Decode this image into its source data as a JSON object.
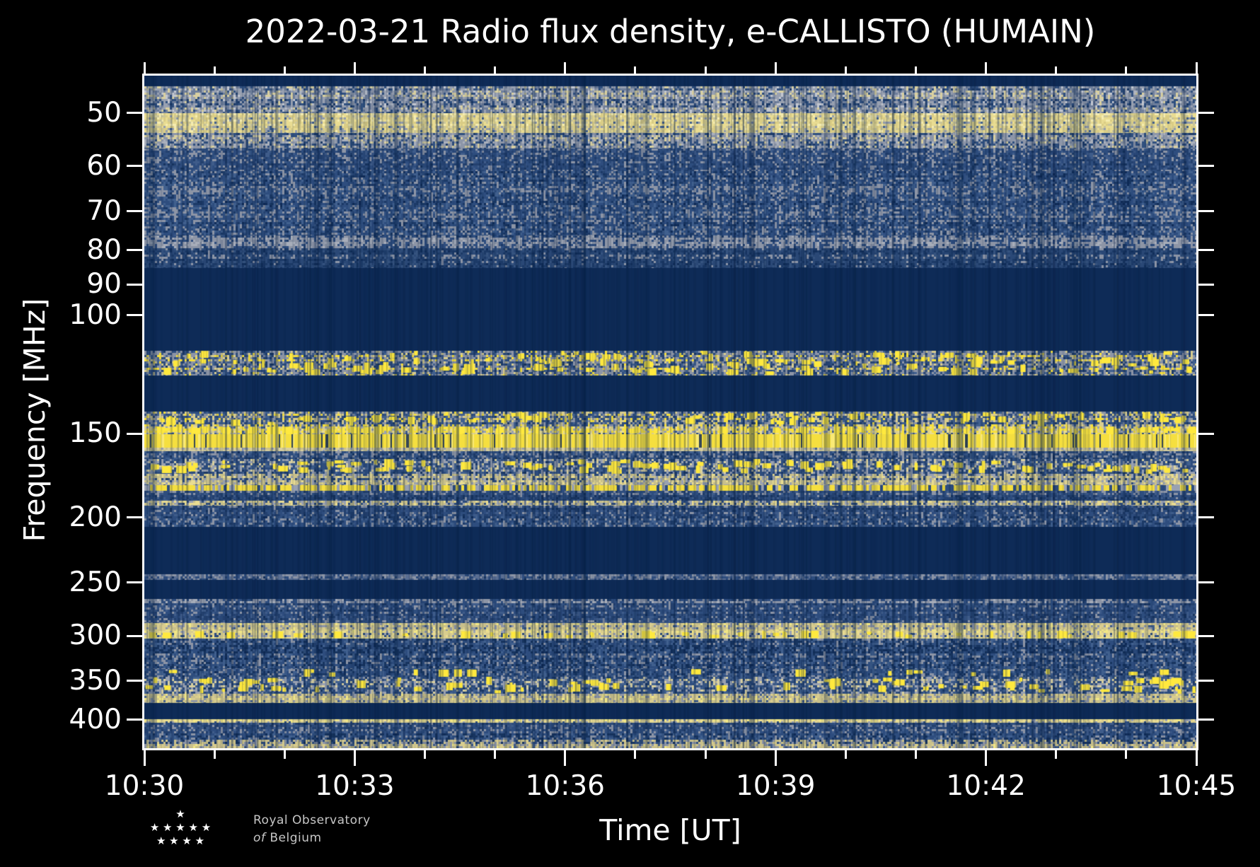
{
  "title": "2022-03-21 Radio flux density, e-CALLISTO (HUMAIN)",
  "axes": {
    "xlabel": "Time [UT]",
    "ylabel": "Frequency [MHz]",
    "x_tick_labels": [
      "10:30",
      "10:33",
      "10:36",
      "10:39",
      "10:42",
      "10:45"
    ],
    "y_tick_labels": [
      "50",
      "60",
      "70",
      "80",
      "90",
      "100",
      "150",
      "200",
      "250",
      "300",
      "350",
      "400"
    ]
  },
  "logo": {
    "star_rows": [
      "★",
      "★ ★ ★ ★ ★",
      "★ ★ ★ ★"
    ],
    "name_line1": "Royal Observatory",
    "name_line2_em": "of",
    "name_line2": "Belgium"
  },
  "colors": {
    "background": "#000000",
    "text": "#ffffff",
    "quiet_navy": "#0e2b57",
    "bright_yellow": "#f5df3f",
    "logo_text": "#c6c6c6"
  },
  "chart_data": {
    "type": "heatmap",
    "title": "2022-03-21 Radio flux density, e-CALLISTO (HUMAIN)",
    "xlabel": "Time [UT]",
    "ylabel": "Frequency [MHz]",
    "x_start_ut": "10:30",
    "x_end_ut": "10:45",
    "x_total_minutes": 15,
    "x_major_tick_interval_min": 3,
    "x_minor_tick_interval_min": 1,
    "x_tick_labels": [
      "10:30",
      "10:33",
      "10:36",
      "10:39",
      "10:42",
      "10:45"
    ],
    "y_scale": "log",
    "y_min_mhz": 44,
    "y_max_mhz": 441,
    "y_tick_values_mhz": [
      50,
      60,
      70,
      80,
      90,
      100,
      150,
      200,
      250,
      300,
      350,
      400
    ],
    "grid": false,
    "legend": "none",
    "quiet_color": "#0e2b57",
    "line_color": "#f5df3f",
    "blob_color": "#ffe93e",
    "vertical_streaks": {
      "count": 430,
      "color": "#0a2348",
      "min_alpha": 0.1,
      "max_alpha": 0.38
    },
    "palettes": {
      "grayheavy": {
        "c": [
          "#d9d0a0",
          "#c3c7d0",
          "#99a1b1",
          "#6f7f9b",
          "#30507f",
          "#1c3a67"
        ],
        "w": [
          0.1,
          0.1,
          0.26,
          0.2,
          0.22,
          0.12
        ]
      },
      "yellowglow": {
        "c": [
          "#f5ecb0",
          "#e9dc92",
          "#d9cc85",
          "#c9c49a",
          "#939cab",
          "#41608e"
        ],
        "w": [
          0.1,
          0.3,
          0.22,
          0.14,
          0.14,
          0.1
        ]
      },
      "grayfade": {
        "c": [
          "#d9d0a0",
          "#aab0bc",
          "#8d96a8",
          "#30507f",
          "#1c3a67"
        ],
        "w": [
          0.08,
          0.16,
          0.3,
          0.3,
          0.16
        ]
      },
      "bluedim": {
        "c": [
          "#8d95a6",
          "#3f5c8a",
          "#2e4d7e",
          "#24416f",
          "#17345f"
        ],
        "w": [
          0.1,
          0.16,
          0.3,
          0.24,
          0.2
        ]
      },
      "bluedim2": {
        "c": [
          "#8d95a6",
          "#35537f",
          "#2a4876",
          "#1c3a67",
          "#122f5b"
        ],
        "w": [
          0.08,
          0.18,
          0.3,
          0.26,
          0.18
        ]
      },
      "bluegray": {
        "c": [
          "#8d95a6",
          "#41608e",
          "#2e4d7e",
          "#1c3a67",
          "#102c58"
        ],
        "w": [
          0.2,
          0.18,
          0.3,
          0.2,
          0.12
        ]
      },
      "bluegray2": {
        "c": [
          "#d9d0a0",
          "#99a1b1",
          "#41608e",
          "#2e4d7e",
          "#1c3a67"
        ],
        "w": [
          0.12,
          0.22,
          0.18,
          0.28,
          0.2
        ]
      },
      "grayheavy2": {
        "c": [
          "#a8aeba",
          "#8d95a6",
          "#2e4d7e",
          "#1c3a67"
        ],
        "w": [
          0.14,
          0.38,
          0.3,
          0.18
        ]
      },
      "airband": {
        "c": [
          "#f7e03c",
          "#d9cd8e",
          "#8d95a6",
          "#41608e",
          "#2e4d7e",
          "#1c3a67"
        ],
        "w": [
          0.08,
          0.12,
          0.3,
          0.12,
          0.22,
          0.16
        ]
      },
      "brightmix": {
        "c": [
          "#f7e03c",
          "#d9cd8e",
          "#8d95a6",
          "#41608e",
          "#2e4d7e",
          "#1c3a67"
        ],
        "w": [
          0.1,
          0.2,
          0.18,
          0.16,
          0.24,
          0.12
        ]
      },
      "brightmix2": {
        "c": [
          "#f7e03c",
          "#e9dc92",
          "#d9cd8e",
          "#99a1b1",
          "#41608e",
          "#2e4d7e"
        ],
        "w": [
          0.22,
          0.18,
          0.14,
          0.16,
          0.12,
          0.18
        ]
      },
      "khakipale": {
        "c": [
          "#d9d0a0",
          "#c9c08b",
          "#99a1b1",
          "#41608e"
        ],
        "w": [
          0.38,
          0.26,
          0.2,
          0.16
        ]
      },
      "khakigray": {
        "c": [
          "#e9dc92",
          "#c9c08b",
          "#99a1b1",
          "#2e4d7e",
          "#1c3a67"
        ],
        "w": [
          0.14,
          0.28,
          0.2,
          0.24,
          0.14
        ]
      },
      "khakidense": {
        "c": [
          "#f2e785",
          "#d9cd8e",
          "#c9c08b",
          "#8d95a6",
          "#3f5c8a"
        ],
        "w": [
          0.1,
          0.24,
          0.3,
          0.18,
          0.18
        ]
      },
      "thingray": {
        "c": [
          "#8d95a6",
          "#5a6e92",
          "#2e4d7e",
          "#17345f"
        ],
        "w": [
          0.22,
          0.3,
          0.3,
          0.18
        ]
      },
      "tanrow": {
        "c": [
          "#f2e785",
          "#e9dc92",
          "#d9cd8e",
          "#99a1b1",
          "#2e4d7e"
        ],
        "w": [
          0.1,
          0.3,
          0.24,
          0.16,
          0.2
        ]
      },
      "bluestreaky": {
        "c": [
          "#8d95a6",
          "#41608e",
          "#2e4d7e",
          "#17345f",
          "#102c58"
        ],
        "w": [
          0.1,
          0.2,
          0.28,
          0.26,
          0.16
        ]
      },
      "graystripe": {
        "c": [
          "#d9cd8e",
          "#c9c08b",
          "#8d95a6",
          "#2e4d7e",
          "#17345f"
        ],
        "w": [
          0.14,
          0.24,
          0.2,
          0.2,
          0.22
        ]
      }
    },
    "bands": [
      {
        "f_lo": 44.0,
        "f_hi": 45.6,
        "kind": "quiet"
      },
      {
        "f_lo": 45.6,
        "f_hi": 50.0,
        "kind": "noise",
        "palette": "grayheavy"
      },
      {
        "f_lo": 50.0,
        "f_hi": 53.6,
        "kind": "noise",
        "palette": "yellowglow"
      },
      {
        "f_lo": 53.6,
        "f_hi": 56.5,
        "kind": "noise",
        "palette": "grayfade"
      },
      {
        "f_lo": 56.5,
        "f_hi": 61.0,
        "kind": "noise",
        "palette": "bluedim"
      },
      {
        "f_lo": 61.0,
        "f_hi": 76.0,
        "kind": "noise",
        "palette": "bluegray"
      },
      {
        "f_lo": 76.0,
        "f_hi": 79.5,
        "kind": "noise",
        "palette": "grayheavy2"
      },
      {
        "f_lo": 79.5,
        "f_hi": 85.0,
        "kind": "noise",
        "palette": "bluedim2"
      },
      {
        "f_lo": 85.0,
        "f_hi": 113.0,
        "kind": "quiet"
      },
      {
        "f_lo": 113.0,
        "f_hi": 123.0,
        "kind": "noise",
        "palette": "airband",
        "blobs": 130
      },
      {
        "f_lo": 123.0,
        "f_hi": 139.0,
        "kind": "quiet"
      },
      {
        "f_lo": 139.0,
        "f_hi": 146.5,
        "kind": "noise",
        "palette": "brightmix",
        "blobs": 60
      },
      {
        "f_lo": 146.5,
        "f_hi": 150.5,
        "kind": "noise",
        "palette": "brightmix2",
        "blobs": 80
      },
      {
        "f_lo": 150.5,
        "f_hi": 157.5,
        "kind": "line"
      },
      {
        "f_lo": 157.5,
        "f_hi": 159.5,
        "kind": "noise",
        "palette": "khakipale"
      },
      {
        "f_lo": 159.5,
        "f_hi": 163.5,
        "kind": "noise",
        "palette": "bluegray"
      },
      {
        "f_lo": 163.5,
        "f_hi": 172.0,
        "kind": "noise",
        "palette": "bluegray2",
        "blobs": 110
      },
      {
        "f_lo": 172.0,
        "f_hi": 179.0,
        "kind": "noise",
        "palette": "khakigray"
      },
      {
        "f_lo": 179.0,
        "f_hi": 182.5,
        "kind": "dash"
      },
      {
        "f_lo": 182.5,
        "f_hi": 189.0,
        "kind": "noise",
        "palette": "bluedim"
      },
      {
        "f_lo": 189.0,
        "f_hi": 192.0,
        "kind": "noise",
        "palette": "khakigray"
      },
      {
        "f_lo": 192.0,
        "f_hi": 199.0,
        "kind": "noise",
        "palette": "bluedim"
      },
      {
        "f_lo": 199.0,
        "f_hi": 206.5,
        "kind": "noise",
        "palette": "bluegray"
      },
      {
        "f_lo": 206.5,
        "f_hi": 243.0,
        "kind": "quiet"
      },
      {
        "f_lo": 243.0,
        "f_hi": 248.0,
        "kind": "noise",
        "palette": "thingray"
      },
      {
        "f_lo": 248.0,
        "f_hi": 264.5,
        "kind": "quiet"
      },
      {
        "f_lo": 264.5,
        "f_hi": 268.5,
        "kind": "noise",
        "palette": "grayheavy2"
      },
      {
        "f_lo": 268.5,
        "f_hi": 287.0,
        "kind": "noise",
        "palette": "bluedim"
      },
      {
        "f_lo": 287.0,
        "f_hi": 295.0,
        "kind": "noise",
        "palette": "khakidense"
      },
      {
        "f_lo": 295.0,
        "f_hi": 303.0,
        "kind": "noise",
        "palette": "tanrow",
        "blobs": 45
      },
      {
        "f_lo": 303.0,
        "f_hi": 336.0,
        "kind": "noise",
        "palette": "bluestreaky"
      },
      {
        "f_lo": 336.0,
        "f_hi": 345.5,
        "kind": "noise",
        "palette": "bluegray",
        "blobs": 18
      },
      {
        "f_lo": 345.5,
        "f_hi": 366.0,
        "kind": "noise",
        "palette": "bluegray2",
        "blobs": 80
      },
      {
        "f_lo": 366.0,
        "f_hi": 378.0,
        "kind": "noise",
        "palette": "khakidense"
      },
      {
        "f_lo": 378.0,
        "f_hi": 399.5,
        "kind": "quiet"
      },
      {
        "f_lo": 399.5,
        "f_hi": 404.5,
        "kind": "noise",
        "palette": "tanrow"
      },
      {
        "f_lo": 404.5,
        "f_hi": 419.0,
        "kind": "noise",
        "palette": "bluedim"
      },
      {
        "f_lo": 419.0,
        "f_hi": 428.0,
        "kind": "noise",
        "palette": "bluestreaky"
      },
      {
        "f_lo": 428.0,
        "f_hi": 435.0,
        "kind": "noise",
        "palette": "graystripe"
      },
      {
        "f_lo": 435.0,
        "f_hi": 441.0,
        "kind": "noise",
        "palette": "khakidense"
      }
    ]
  }
}
